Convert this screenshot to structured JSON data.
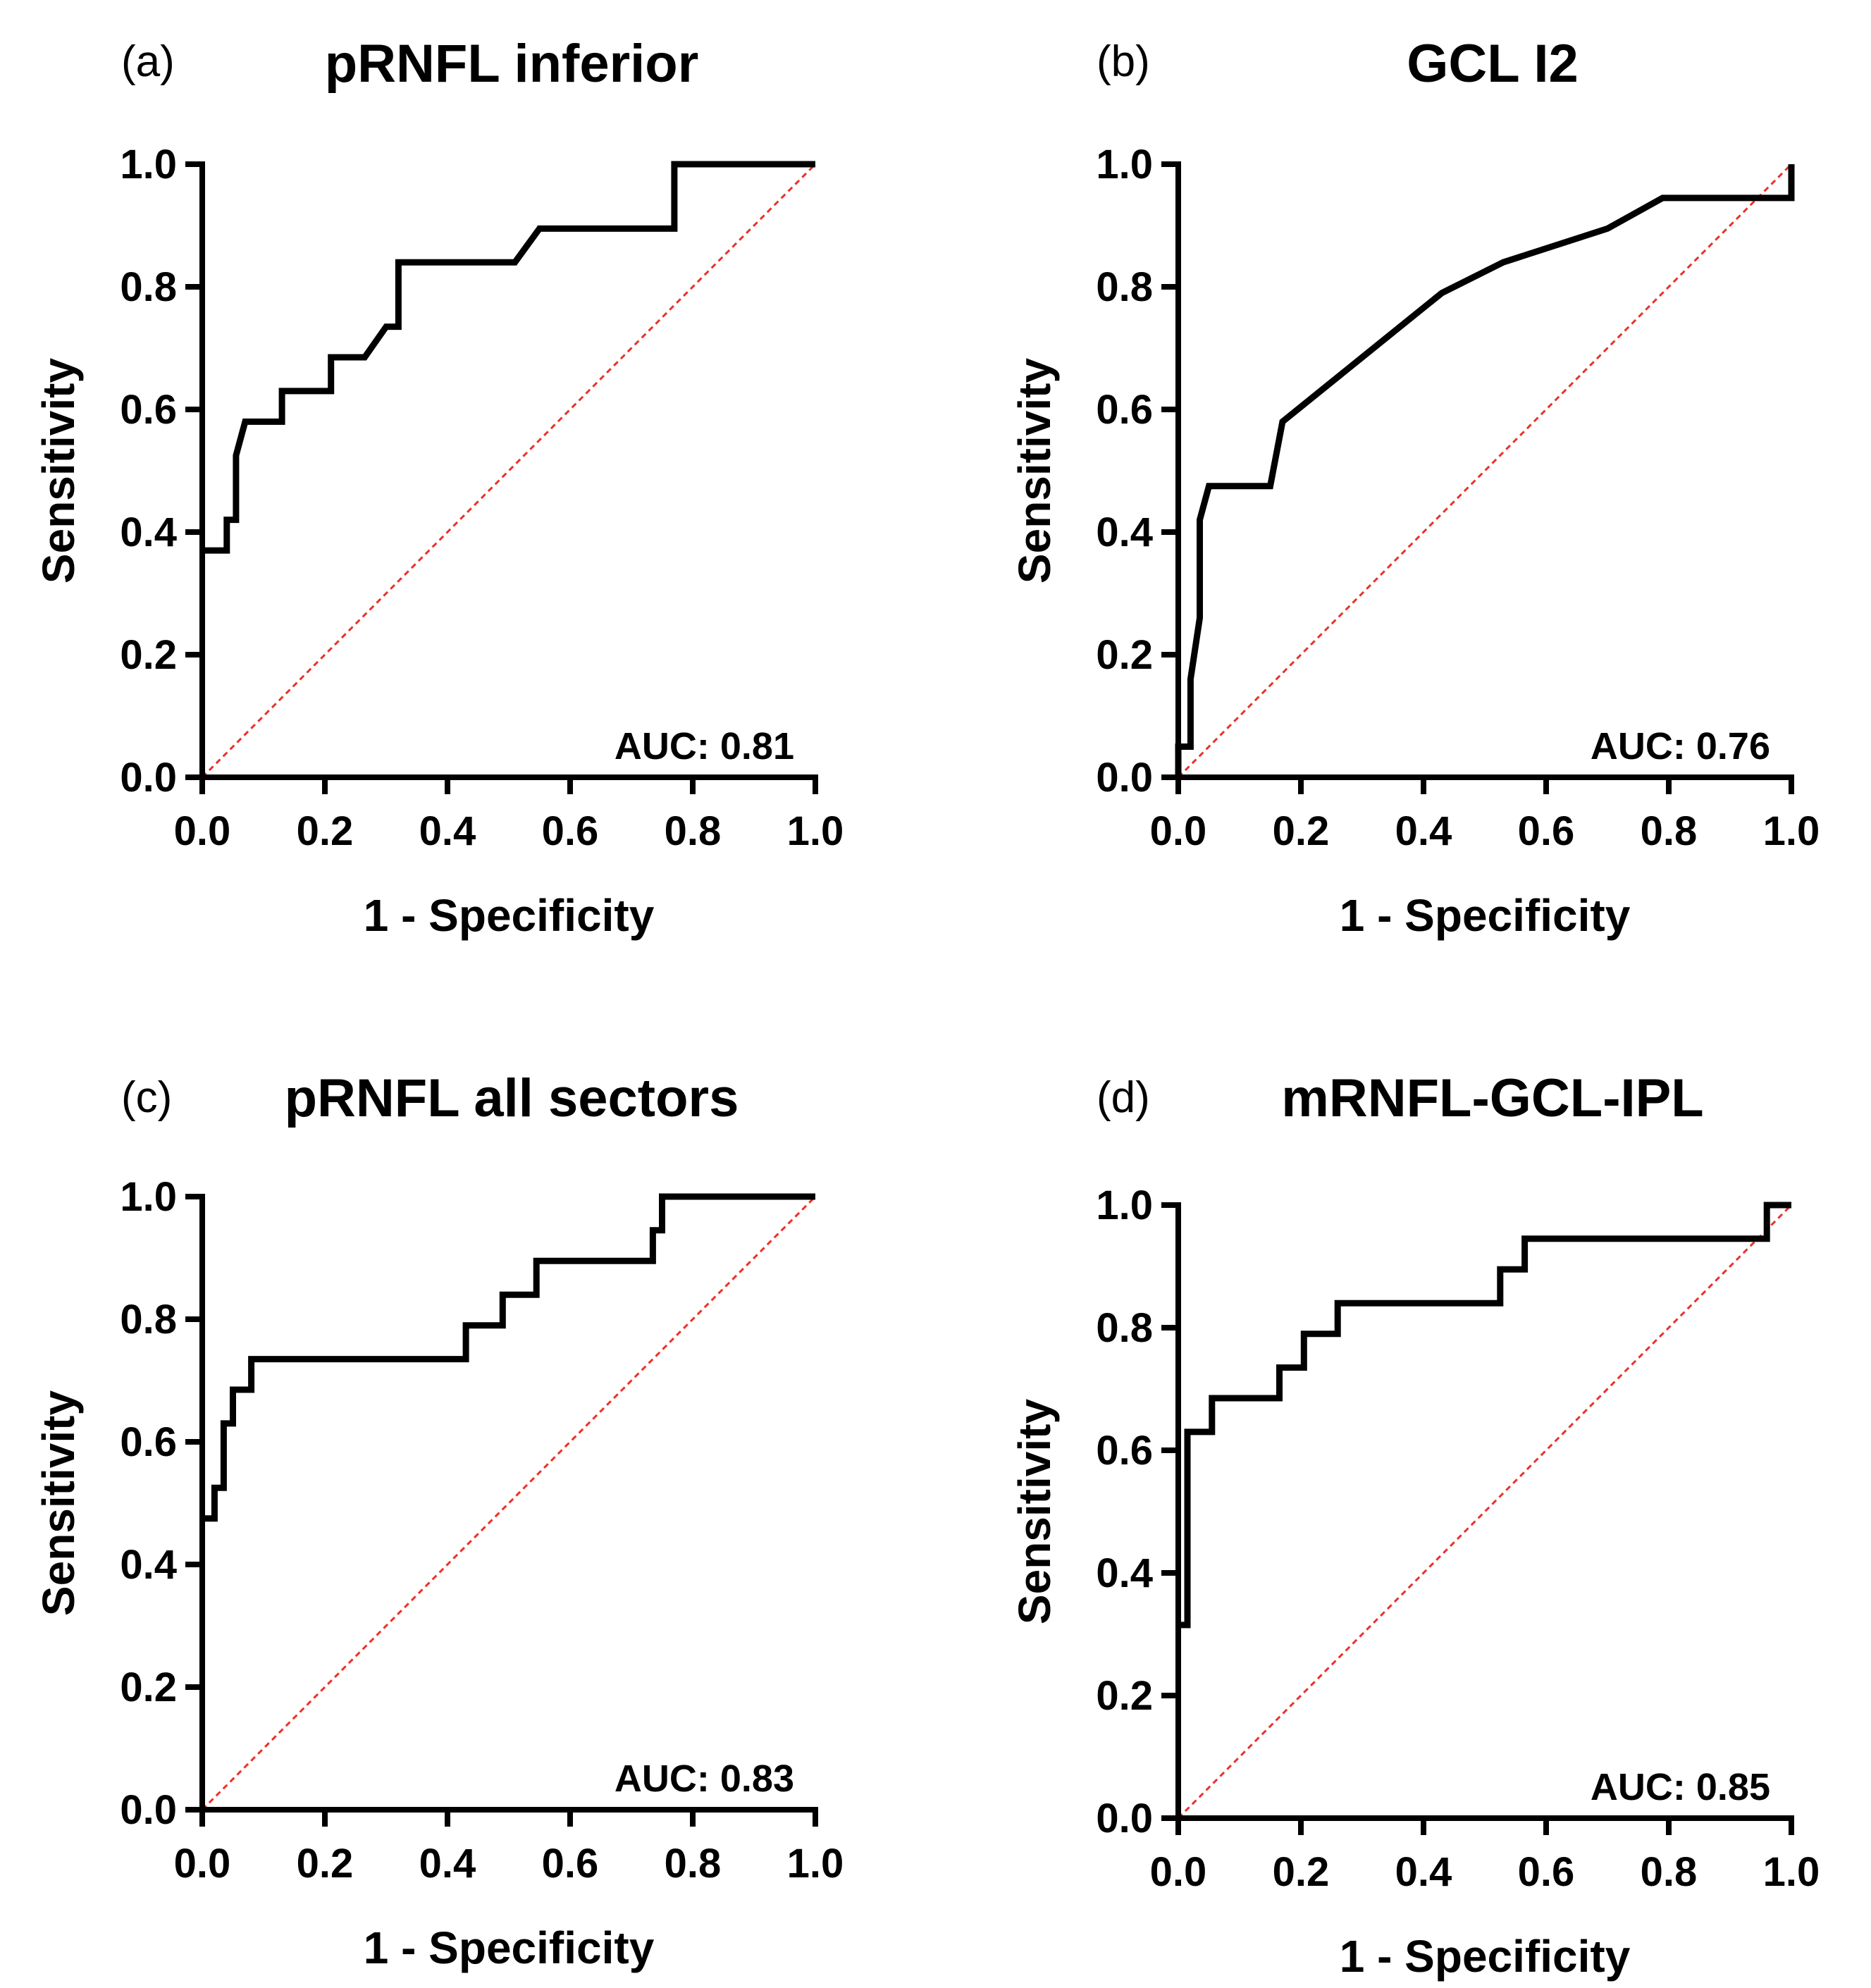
{
  "chart_data": [
    {
      "type": "line",
      "panel_label": "(a)",
      "title": "pRNFL inferior",
      "xlabel": "1 - Specificity",
      "ylabel": "Sensitivity",
      "xlim": [
        0,
        1
      ],
      "ylim": [
        0,
        1
      ],
      "xticks": [
        "0.0",
        "0.2",
        "0.4",
        "0.6",
        "0.8",
        "1.0"
      ],
      "yticks": [
        "0.0",
        "0.2",
        "0.4",
        "0.6",
        "0.8",
        "1.0"
      ],
      "annotation": "AUC: 0.81",
      "series": [
        {
          "name": "ROC",
          "x": [
            0,
            0,
            0.04,
            0.04,
            0.055,
            0.055,
            0.07,
            0.13,
            0.13,
            0.21,
            0.21,
            0.265,
            0.3,
            0.32,
            0.32,
            0.51,
            0.55,
            0.77,
            0.77,
            1.0
          ],
          "y": [
            0.37,
            0.37,
            0.37,
            0.42,
            0.42,
            0.525,
            0.58,
            0.58,
            0.63,
            0.63,
            0.685,
            0.685,
            0.735,
            0.735,
            0.84,
            0.84,
            0.895,
            0.895,
            1.0,
            1.0
          ]
        },
        {
          "name": "Reference",
          "x": [
            0,
            1
          ],
          "y": [
            0,
            1
          ]
        }
      ]
    },
    {
      "type": "line",
      "panel_label": "(b)",
      "title": "GCL I2",
      "xlabel": "1 - Specificity",
      "ylabel": "Sensitivity",
      "xlim": [
        0,
        1
      ],
      "ylim": [
        0,
        1
      ],
      "xticks": [
        "0.0",
        "0.2",
        "0.4",
        "0.6",
        "0.8",
        "1.0"
      ],
      "yticks": [
        "0.0",
        "0.2",
        "0.4",
        "0.6",
        "0.8",
        "1.0"
      ],
      "annotation": "AUC: 0.76",
      "series": [
        {
          "name": "ROC",
          "x": [
            0,
            0,
            0.02,
            0.02,
            0.035,
            0.035,
            0.05,
            0.15,
            0.17,
            0.3,
            0.43,
            0.53,
            0.7,
            0.79,
            1.0,
            1.0
          ],
          "y": [
            0,
            0.05,
            0.05,
            0.16,
            0.26,
            0.42,
            0.475,
            0.475,
            0.58,
            0.685,
            0.79,
            0.84,
            0.895,
            0.945,
            0.945,
            1.0
          ]
        },
        {
          "name": "Reference",
          "x": [
            0,
            1
          ],
          "y": [
            0,
            1
          ]
        }
      ]
    },
    {
      "type": "line",
      "panel_label": "(c)",
      "title": "pRNFL all sectors",
      "xlabel": "1 - Specificity",
      "ylabel": "Sensitivity",
      "xlim": [
        0,
        1
      ],
      "ylim": [
        0,
        1
      ],
      "xticks": [
        "0.0",
        "0.2",
        "0.4",
        "0.6",
        "0.8",
        "1.0"
      ],
      "yticks": [
        "0.0",
        "0.2",
        "0.4",
        "0.6",
        "0.8",
        "1.0"
      ],
      "annotation": "AUC: 0.83",
      "series": [
        {
          "name": "ROC",
          "x": [
            0,
            0.02,
            0.02,
            0.035,
            0.035,
            0.05,
            0.05,
            0.065,
            0.065,
            0.08,
            0.08,
            0.43,
            0.43,
            0.49,
            0.49,
            0.545,
            0.545,
            0.735,
            0.735,
            0.75,
            0.75,
            1.0
          ],
          "y": [
            0.475,
            0.475,
            0.525,
            0.525,
            0.63,
            0.63,
            0.685,
            0.685,
            0.685,
            0.685,
            0.735,
            0.735,
            0.79,
            0.79,
            0.84,
            0.84,
            0.895,
            0.895,
            0.945,
            0.945,
            1.0,
            1.0
          ]
        },
        {
          "name": "Reference",
          "x": [
            0,
            1
          ],
          "y": [
            0,
            1
          ]
        }
      ]
    },
    {
      "type": "line",
      "panel_label": "(d)",
      "title": "mRNFL-GCL-IPL",
      "xlabel": "1 - Specificity",
      "ylabel": "Sensitivity",
      "xlim": [
        0,
        1
      ],
      "ylim": [
        0,
        1
      ],
      "xticks": [
        "0.0",
        "0.2",
        "0.4",
        "0.6",
        "0.8",
        "1.0"
      ],
      "yticks": [
        "0.0",
        "0.2",
        "0.4",
        "0.6",
        "0.8",
        "1.0"
      ],
      "annotation": "AUC: 0.85",
      "series": [
        {
          "name": "ROC",
          "x": [
            0,
            0.015,
            0.015,
            0.035,
            0.035,
            0.055,
            0.055,
            0.165,
            0.165,
            0.205,
            0.205,
            0.26,
            0.26,
            0.525,
            0.525,
            0.565,
            0.565,
            0.96,
            0.96,
            1.0
          ],
          "y": [
            0.315,
            0.315,
            0.63,
            0.63,
            0.63,
            0.63,
            0.685,
            0.685,
            0.735,
            0.735,
            0.79,
            0.79,
            0.84,
            0.84,
            0.895,
            0.895,
            0.945,
            0.945,
            1.0,
            1.0
          ]
        },
        {
          "name": "Reference",
          "x": [
            0,
            1
          ],
          "y": [
            0,
            1
          ]
        }
      ]
    }
  ]
}
